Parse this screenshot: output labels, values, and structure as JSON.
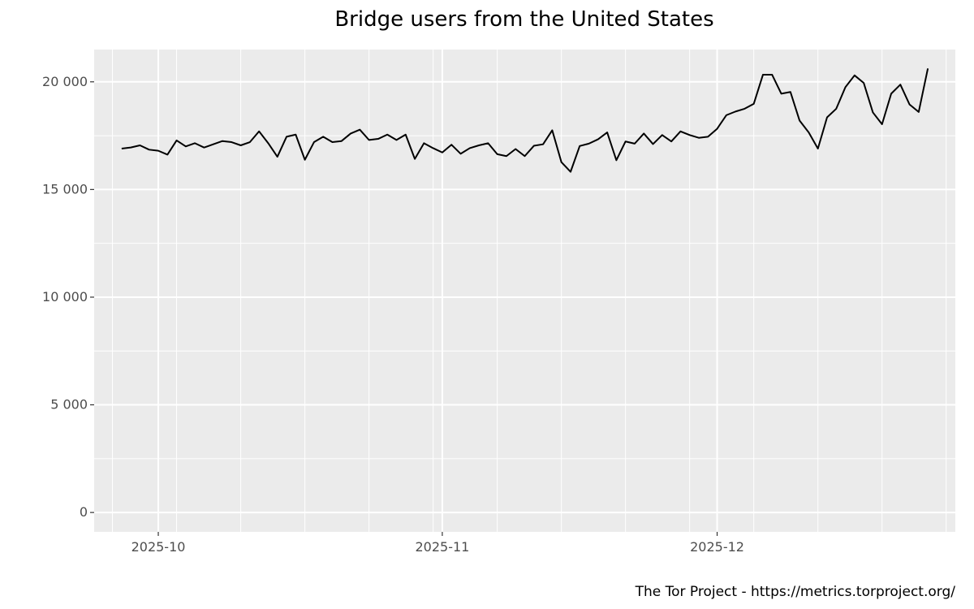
{
  "chart_data": {
    "type": "line",
    "title": "Bridge users from the United States",
    "caption": "The Tor Project - https://metrics.torproject.org/",
    "xlabel": "",
    "ylabel": "",
    "x_start": "2025-09-27",
    "x_end": "2025-12-23",
    "xlim": [
      "2025-09-24",
      "2025-12-27"
    ],
    "ylim": [
      -900,
      21500
    ],
    "x_ticks": [
      {
        "date": "2025-10-01",
        "label": "2025-10"
      },
      {
        "date": "2025-11-01",
        "label": "2025-11"
      },
      {
        "date": "2025-12-01",
        "label": "2025-12"
      }
    ],
    "y_ticks": [
      {
        "value": 0,
        "label": "0"
      },
      {
        "value": 5000,
        "label": "5 000"
      },
      {
        "value": 10000,
        "label": "10 000"
      },
      {
        "value": 15000,
        "label": "15 000"
      },
      {
        "value": 20000,
        "label": "20 000"
      }
    ],
    "grid": true,
    "line_color": "#000000",
    "series": [
      {
        "values": [
          16900,
          16950,
          17050,
          16850,
          16800,
          16620,
          17280,
          17000,
          17150,
          16950,
          17100,
          17250,
          17200,
          17050,
          17200,
          17700,
          17150,
          16520,
          17450,
          17550,
          16380,
          17200,
          17450,
          17200,
          17250,
          17600,
          17780,
          17300,
          17350,
          17550,
          17300,
          17550,
          16420,
          17150,
          16920,
          16720,
          17080,
          16660,
          16920,
          17050,
          17150,
          16640,
          16550,
          16880,
          16550,
          17030,
          17100,
          17750,
          16270,
          15820,
          17020,
          17130,
          17330,
          17650,
          16360,
          17230,
          17130,
          17600,
          17110,
          17530,
          17230,
          17700,
          17530,
          17400,
          17450,
          17820,
          18450,
          18620,
          18750,
          18980,
          20330,
          20330,
          19450,
          19530,
          18200,
          17650,
          16900,
          18350,
          18750,
          19750,
          20300,
          19950,
          18580,
          18030,
          19450,
          19870,
          18950,
          18600,
          20620
        ]
      }
    ]
  }
}
